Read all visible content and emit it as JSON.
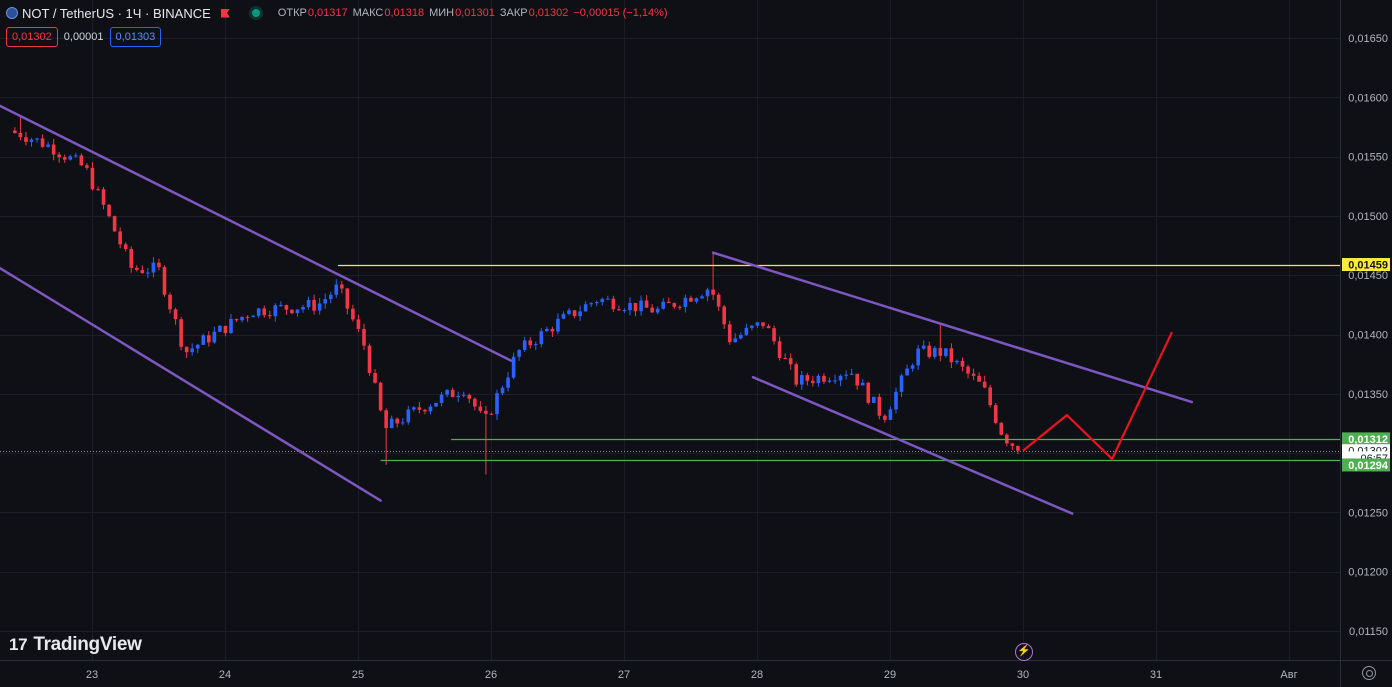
{
  "header": {
    "symbol": "NOT / TetherUS · 1Ч · BINANCE",
    "open_label": "ОТКР",
    "open_value": "0,01317",
    "high_label": "МАКС",
    "high_value": "0,01318",
    "low_label": "МИН",
    "low_value": "0,01301",
    "close_label": "ЗАКР",
    "close_value": "0,01302",
    "change": "−0,00015 (−1,14%)"
  },
  "order_bar": {
    "sell_price": "0,01302",
    "spread": "0,00001",
    "buy_price": "0,01303"
  },
  "colors": {
    "up": "#2962ff",
    "down": "#f23645",
    "channel": "#7e57c2",
    "resistance": "#ffeb3b",
    "support": "#4caf50",
    "projection": "#e8141f"
  },
  "watermark": "TradingView",
  "price_scale": {
    "ticks": [
      "0,01650",
      "0,01600",
      "0,01550",
      "0,01500",
      "0,01450",
      "0,01400",
      "0,01350",
      "0,01300",
      "0,01250",
      "0,01200",
      "0,01150"
    ],
    "labels": [
      {
        "text": "0,01459",
        "style": "yellow",
        "price": 0.01459
      },
      {
        "text": "0,01312",
        "style": "green",
        "price": 0.01312
      },
      {
        "text": "0,01302",
        "style": "last",
        "price": 0.01302
      },
      {
        "text": "06:57",
        "style": "countdown",
        "price": 0.01296
      },
      {
        "text": "0,01294",
        "style": "green",
        "price": 0.0129
      }
    ]
  },
  "time_scale": [
    "23",
    "24",
    "25",
    "26",
    "27",
    "28",
    "29",
    "30",
    "31",
    "Авг"
  ],
  "chart_data": {
    "type": "candlestick",
    "interval": "1h",
    "period": "Jul 22 – Jul 30 (hourly)",
    "ylim": [
      0.0112,
      0.0169
    ],
    "x_days": [
      23,
      24,
      25,
      26,
      27,
      28,
      29,
      30,
      31,
      32
    ],
    "close_path_keypoints": [
      {
        "day": 22.45,
        "close": 0.0157
      },
      {
        "day": 22.7,
        "close": 0.01558
      },
      {
        "day": 22.95,
        "close": 0.0154
      },
      {
        "day": 23.1,
        "close": 0.01505
      },
      {
        "day": 23.3,
        "close": 0.01455
      },
      {
        "day": 23.5,
        "close": 0.01455
      },
      {
        "day": 23.7,
        "close": 0.01385
      },
      {
        "day": 24.2,
        "close": 0.0142
      },
      {
        "day": 24.7,
        "close": 0.01425
      },
      {
        "day": 24.85,
        "close": 0.0144
      },
      {
        "day": 25.05,
        "close": 0.0139
      },
      {
        "day": 25.2,
        "close": 0.0132
      },
      {
        "day": 25.5,
        "close": 0.0134
      },
      {
        "day": 25.8,
        "close": 0.01355
      },
      {
        "day": 25.95,
        "close": 0.01325
      },
      {
        "day": 26.2,
        "close": 0.01385
      },
      {
        "day": 26.5,
        "close": 0.0141
      },
      {
        "day": 26.8,
        "close": 0.0143
      },
      {
        "day": 27.25,
        "close": 0.0142
      },
      {
        "day": 27.65,
        "close": 0.0144
      },
      {
        "day": 27.8,
        "close": 0.01395
      },
      {
        "day": 28.05,
        "close": 0.0141
      },
      {
        "day": 28.3,
        "close": 0.0136
      },
      {
        "day": 28.7,
        "close": 0.0137
      },
      {
        "day": 28.95,
        "close": 0.0133
      },
      {
        "day": 29.2,
        "close": 0.01385
      },
      {
        "day": 29.4,
        "close": 0.01385
      },
      {
        "day": 29.7,
        "close": 0.01355
      },
      {
        "day": 29.85,
        "close": 0.01315
      },
      {
        "day": 29.98,
        "close": 0.01302
      }
    ],
    "extreme_wicks": [
      {
        "day": 22.45,
        "high": 0.01585
      },
      {
        "day": 25.2,
        "low": 0.0129
      },
      {
        "day": 25.97,
        "low": 0.01282
      },
      {
        "day": 27.67,
        "high": 0.0147
      },
      {
        "day": 29.37,
        "high": 0.0141
      }
    ],
    "horizontal_levels": [
      {
        "price": 0.01459,
        "from_day": 24.85,
        "color": "yellow"
      },
      {
        "price": 0.01312,
        "from_day": 25.7,
        "color": "green"
      },
      {
        "price": 0.01294,
        "from_day": 25.17,
        "color": "green"
      }
    ],
    "trend_lines": [
      {
        "name": "descending channel 1 upper",
        "from": [
          22.0,
          0.0161
        ],
        "to": [
          26.15,
          0.01378
        ]
      },
      {
        "name": "descending channel 1 lower",
        "from": [
          22.0,
          0.01477
        ],
        "to": [
          25.17,
          0.0126
        ]
      },
      {
        "name": "descending channel 2 upper",
        "from": [
          27.67,
          0.01469
        ],
        "to": [
          31.27,
          0.01343
        ]
      },
      {
        "name": "descending channel 2 lower",
        "from": [
          27.97,
          0.01364
        ],
        "to": [
          30.37,
          0.01249
        ]
      }
    ],
    "projection_path": [
      {
        "day": 30.0,
        "price": 0.01302
      },
      {
        "day": 30.33,
        "price": 0.01332
      },
      {
        "day": 30.67,
        "price": 0.01295
      },
      {
        "day": 31.12,
        "price": 0.01402
      }
    ]
  }
}
